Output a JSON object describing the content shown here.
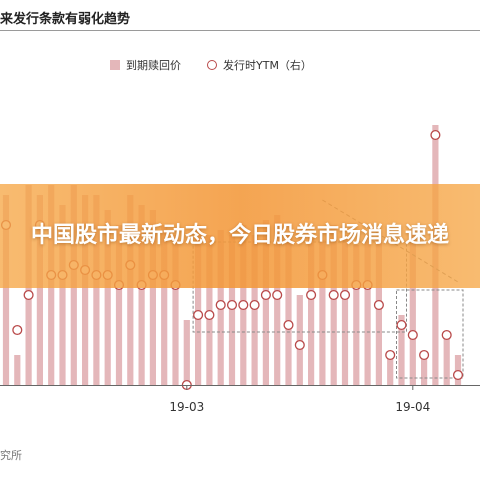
{
  "header": {
    "title": "来发行条款有弱化趋势"
  },
  "source_note": "究所",
  "banner": {
    "headline": "中国股市最新动态，今日股券市场消息速递"
  },
  "colors": {
    "bar": "#e4b7ba",
    "marker_stroke": "#b94a4a",
    "dashed_box": "#888888",
    "banner": "#f49a3c"
  },
  "chart_data": {
    "type": "bar",
    "legend": {
      "bar_label": "到期赎回价",
      "line_label": "发行时YTM（右）",
      "placement": "top"
    },
    "x_ticks": [
      "19-03",
      "19-04"
    ],
    "x_tick_index": [
      16,
      36
    ],
    "ylim": [
      0,
      290
    ],
    "y2lim": [
      0,
      290
    ],
    "grid": false,
    "series": [
      {
        "name": "到期赎回价",
        "kind": "bar",
        "values": [
          190,
          30,
          200,
          190,
          200,
          180,
          200,
          190,
          190,
          175,
          160,
          190,
          180,
          175,
          160,
          150,
          65,
          160,
          150,
          155,
          150,
          160,
          150,
          165,
          170,
          150,
          90,
          150,
          145,
          160,
          150,
          140,
          150,
          145,
          30,
          70,
          150,
          30,
          260,
          50,
          30
        ]
      },
      {
        "name": "发行时YTM（右）",
        "kind": "scatter",
        "values": [
          160,
          55,
          90,
          160,
          110,
          110,
          120,
          115,
          110,
          110,
          100,
          120,
          100,
          110,
          110,
          100,
          0,
          70,
          70,
          80,
          80,
          80,
          80,
          90,
          90,
          60,
          40,
          90,
          110,
          90,
          90,
          100,
          100,
          80,
          30,
          60,
          50,
          30,
          250,
          50,
          10
        ]
      }
    ],
    "annotations": [
      {
        "kind": "dashed-box",
        "start_index": 17,
        "end_index": 35
      },
      {
        "kind": "dashed-box",
        "start_index": 35,
        "end_index": 40
      }
    ]
  }
}
